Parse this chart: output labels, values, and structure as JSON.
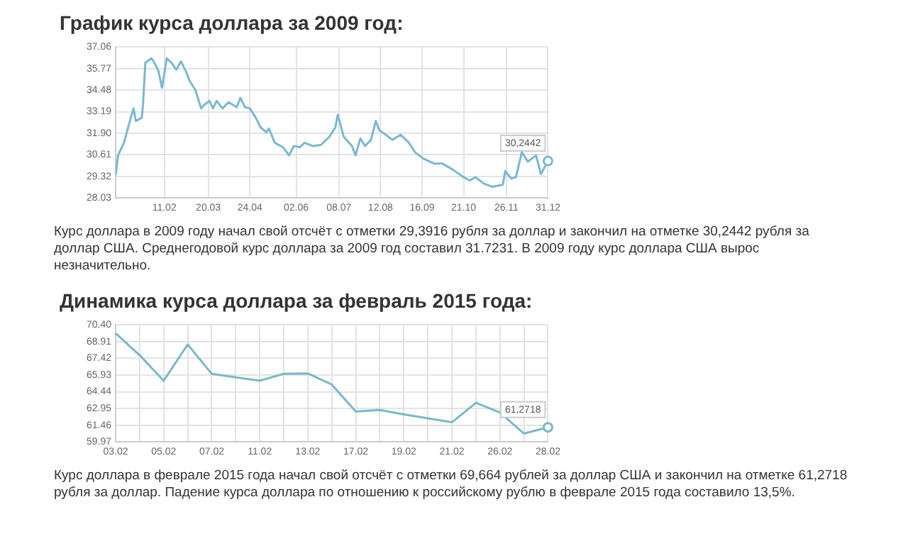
{
  "chart_data": [
    {
      "type": "line",
      "title": "График курса доллара за 2009 год:",
      "x": [
        "2009-01-01",
        "2009-01-03",
        "2009-01-08",
        "2009-01-13",
        "2009-01-16",
        "2009-01-18",
        "2009-01-23",
        "2009-01-24",
        "2009-01-26",
        "2009-01-31",
        "2009-02-02",
        "2009-02-06",
        "2009-02-09",
        "2009-02-13",
        "2009-02-17",
        "2009-02-21",
        "2009-02-25",
        "2009-03-01",
        "2009-03-04",
        "2009-03-09",
        "2009-03-14",
        "2009-03-16",
        "2009-03-21",
        "2009-03-24",
        "2009-03-27",
        "2009-04-01",
        "2009-04-06",
        "2009-04-13",
        "2009-04-16",
        "2009-04-20",
        "2009-04-24",
        "2009-04-29",
        "2009-05-03",
        "2009-05-08",
        "2009-05-10",
        "2009-05-15",
        "2009-05-22",
        "2009-05-27",
        "2009-05-31",
        "2009-06-05",
        "2009-06-09",
        "2009-06-16",
        "2009-06-23",
        "2009-06-30",
        "2009-07-05",
        "2009-07-07",
        "2009-07-12",
        "2009-07-19",
        "2009-07-22",
        "2009-07-26",
        "2009-07-30",
        "2009-08-04",
        "2009-08-08",
        "2009-08-11",
        "2009-08-15",
        "2009-08-22",
        "2009-08-29",
        "2009-09-05",
        "2009-09-10",
        "2009-09-17",
        "2009-09-26",
        "2009-10-03",
        "2009-10-12",
        "2009-10-21",
        "2009-10-26",
        "2009-10-31",
        "2009-11-07",
        "2009-11-14",
        "2009-11-23",
        "2009-11-25",
        "2009-11-30",
        "2009-12-04",
        "2009-12-09",
        "2009-12-14",
        "2009-12-21",
        "2009-12-25",
        "2009-12-31"
      ],
      "series": [
        {
          "color": "#7ab8d2",
          "values": [
            29.39,
            30.58,
            31.33,
            32.64,
            33.39,
            32.64,
            32.83,
            33.57,
            36.12,
            36.39,
            36.2,
            35.64,
            34.62,
            36.39,
            36.12,
            35.71,
            36.2,
            35.64,
            35.07,
            34.51,
            33.39,
            33.57,
            33.84,
            33.39,
            33.84,
            33.39,
            33.76,
            33.46,
            34.02,
            33.46,
            33.39,
            32.83,
            32.26,
            31.96,
            32.19,
            31.33,
            31.06,
            30.58,
            31.14,
            31.06,
            31.33,
            31.14,
            31.21,
            31.7,
            32.26,
            33.01,
            31.7,
            31.14,
            30.58,
            31.59,
            31.14,
            31.51,
            32.64,
            32.08,
            31.89,
            31.51,
            31.81,
            31.33,
            30.77,
            30.39,
            30.09,
            30.09,
            29.72,
            29.27,
            29.08,
            29.27,
            28.89,
            28.7,
            28.82,
            29.64,
            29.19,
            29.27,
            30.77,
            30.2,
            30.58,
            29.45,
            30.2442
          ]
        }
      ],
      "xlim": [
        "2009-01-01",
        "2009-12-31"
      ],
      "xticks": [
        {
          "value": "2009-02-11",
          "label": "11.02"
        },
        {
          "value": "2009-03-20",
          "label": "20.03"
        },
        {
          "value": "2009-04-24",
          "label": "24.04"
        },
        {
          "value": "2009-06-02",
          "label": "02.06"
        },
        {
          "value": "2009-07-08",
          "label": "08.07"
        },
        {
          "value": "2009-08-12",
          "label": "12.08"
        },
        {
          "value": "2009-09-16",
          "label": "16.09"
        },
        {
          "value": "2009-10-21",
          "label": "21.10"
        },
        {
          "value": "2009-11-26",
          "label": "26.11"
        },
        {
          "value": "2009-12-31",
          "label": "31.12"
        }
      ],
      "ylim": [
        28.03,
        37.06
      ],
      "yticks": [
        28.03,
        29.32,
        30.61,
        {
          "value": 31.9,
          "label": "31.90"
        },
        33.19,
        34.48,
        35.77,
        37.06
      ],
      "grid": true,
      "legend": false,
      "marker": "none",
      "annotations": [
        {
          "text": "30,2442",
          "x": "2009-12-31",
          "y": 30.2442
        },
        "Курс доллара в 2009 году начал свой отсчёт с отметки 29,3916 рубля за доллар и закончил на отметке 30,2442 рубля за доллар США. Среднегодовой курс доллара за 2009 год составил 31.7231. В 2009 году курс доллара США вырос незначительно."
      ]
    },
    {
      "type": "line",
      "title": "Динамика курса доллара за февраль 2015 года:",
      "categories": [
        "03.02",
        null,
        "05.02",
        null,
        "07.02",
        null,
        "11.02",
        null,
        "13.02",
        null,
        "17.02",
        null,
        "19.02",
        null,
        "21.02",
        null,
        "26.02",
        null,
        "28.02"
      ],
      "series": [
        {
          "color": "#7ab8c8",
          "values": [
            69.66,
            67.7,
            65.43,
            68.66,
            66.04,
            65.73,
            65.43,
            66.04,
            66.08,
            65.08,
            62.68,
            62.81,
            62.42,
            62.07,
            61.72,
            63.46,
            62.59,
            60.71,
            61.2718
          ]
        }
      ],
      "ylim": [
        59.97,
        70.4
      ],
      "yticks": [
        59.97,
        61.46,
        62.95,
        64.44,
        65.93,
        67.42,
        68.91,
        {
          "value": 70.4,
          "label": "70.40"
        }
      ],
      "grid": true,
      "legend": false,
      "marker": "none",
      "annotations": [
        {
          "text": "61,2718",
          "x": "28.02",
          "y": 61.2718
        },
        "Курс доллара в феврале 2015 года начал свой отсчёт с отметки 69,664 рублей за доллар США и закончил на отметке 61,2718 рубля за доллар. Падение курса доллара по отношению к российскому рублю в феврале 2015 года составило 13,5%."
      ]
    }
  ]
}
